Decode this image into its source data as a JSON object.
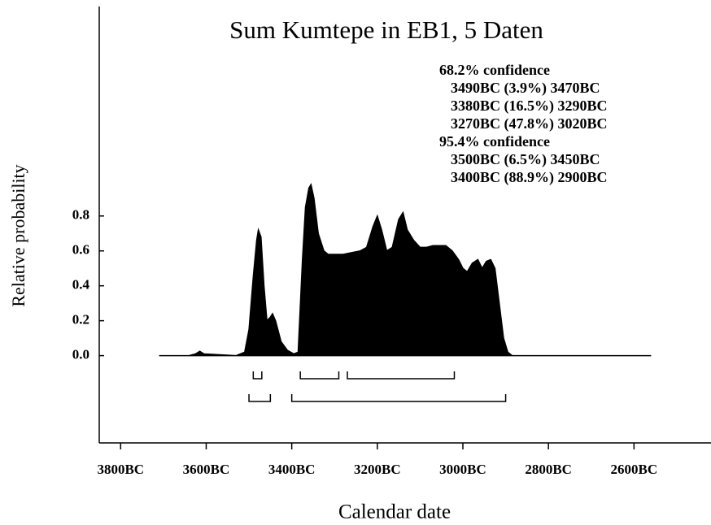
{
  "chart_data": {
    "type": "area",
    "title": "Sum Kumtepe in EB1, 5 Daten",
    "xlabel": "Calendar date",
    "ylabel": "Relative probability",
    "color": "#000000",
    "x": [
      3710,
      3640,
      3625,
      3615,
      3605,
      3530,
      3510,
      3500,
      3490,
      3482,
      3478,
      3472,
      3465,
      3458,
      3450,
      3445,
      3438,
      3425,
      3410,
      3395,
      3385,
      3375,
      3368,
      3360,
      3355,
      3348,
      3338,
      3325,
      3315,
      3300,
      3280,
      3260,
      3240,
      3225,
      3210,
      3200,
      3190,
      3178,
      3165,
      3150,
      3140,
      3130,
      3115,
      3100,
      3085,
      3070,
      3055,
      3040,
      3025,
      3010,
      3000,
      2990,
      2978,
      2965,
      2955,
      2945,
      2935,
      2925,
      2915,
      2905,
      2895,
      2885,
      2700,
      2560
    ],
    "values": [
      0,
      0,
      0.01,
      0.025,
      0.01,
      0,
      0.02,
      0.15,
      0.45,
      0.66,
      0.72,
      0.68,
      0.4,
      0.2,
      0.22,
      0.24,
      0.2,
      0.08,
      0.03,
      0.01,
      0.02,
      0.55,
      0.85,
      0.96,
      0.98,
      0.9,
      0.7,
      0.6,
      0.58,
      0.58,
      0.58,
      0.59,
      0.6,
      0.62,
      0.74,
      0.8,
      0.72,
      0.6,
      0.62,
      0.78,
      0.82,
      0.72,
      0.66,
      0.62,
      0.62,
      0.63,
      0.63,
      0.63,
      0.6,
      0.55,
      0.5,
      0.48,
      0.53,
      0.55,
      0.5,
      0.54,
      0.55,
      0.5,
      0.3,
      0.1,
      0.02,
      0,
      0,
      0
    ],
    "xlim": [
      3850,
      2420
    ],
    "ylim": [
      -0.5,
      2.0
    ],
    "xticks": [
      {
        "value": 3800,
        "label": "3800BC"
      },
      {
        "value": 3600,
        "label": "3600BC"
      },
      {
        "value": 3400,
        "label": "3400BC"
      },
      {
        "value": 3200,
        "label": "3200BC"
      },
      {
        "value": 3000,
        "label": "3000BC"
      },
      {
        "value": 2800,
        "label": "2800BC"
      },
      {
        "value": 2600,
        "label": "2600BC"
      }
    ],
    "yticks": [
      {
        "value": 0,
        "label": "0.0"
      },
      {
        "value": 0.2,
        "label": "0.2"
      },
      {
        "value": 0.4,
        "label": "0.4"
      },
      {
        "value": 0.6,
        "label": "0.6"
      },
      {
        "value": 0.8,
        "label": "0.8"
      }
    ],
    "confidence": [
      {
        "label": "68.2% confidence",
        "ranges": [
          {
            "from": 3490,
            "to": 3470,
            "label": "3490BC (3.9%) 3470BC"
          },
          {
            "from": 3380,
            "to": 3290,
            "label": "3380BC (16.5%) 3290BC"
          },
          {
            "from": 3270,
            "to": 3020,
            "label": "3270BC (47.8%) 3020BC"
          }
        ]
      },
      {
        "label": "95.4% confidence",
        "ranges": [
          {
            "from": 3500,
            "to": 3450,
            "label": "3500BC (6.5%) 3450BC"
          },
          {
            "from": 3400,
            "to": 2900,
            "label": "3400BC (88.9%) 2900BC"
          }
        ]
      }
    ]
  }
}
